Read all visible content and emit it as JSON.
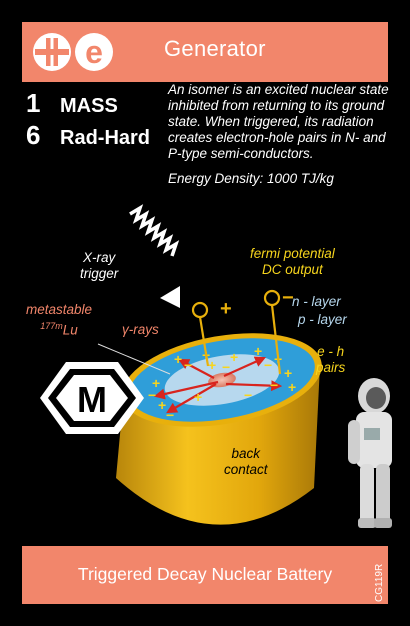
{
  "card": {
    "title": "Generator",
    "logo_text": "e",
    "stats": [
      {
        "value": "1",
        "label": "MASS"
      },
      {
        "value": "6",
        "label": "Rad-Hard"
      }
    ],
    "description": "An isomer is an excited nuclear state inhibited from returning to its ground state. When triggered, its radiation creates electron-hole pairs in N- and P-type semi-conductors.",
    "energy_density": "Energy Density: 1000 TJ/kg",
    "footer_title": "Triggered Decay Nuclear Battery",
    "card_code": "CG119R",
    "type_badge": "M"
  },
  "diagram": {
    "xray_trigger": [
      "X-ray",
      "trigger"
    ],
    "metastable": "metastable",
    "isotope_mass": "177m",
    "isotope_symbol": "Lu",
    "gamma_rays": "γ-rays",
    "fermi_output": [
      "fermi potential",
      "DC output"
    ],
    "n_layer": "n - layer",
    "p_layer": "p - layer",
    "eh_pairs": [
      "e - h",
      "pairs"
    ],
    "back_contact": [
      "back",
      "contact"
    ],
    "plus_sign": "+",
    "minus_sign": "−"
  },
  "colors": {
    "header": "#f2866b",
    "gold": "#e8b00c",
    "blue": "#2f9ed9",
    "pale_blue": "#b7d8ee",
    "yellow_text": "#f7d51d",
    "salmon_text": "#f2866b",
    "red_arrow": "#d8241e"
  },
  "icons": [
    "generator-logo-icon",
    "type-m-hexagon-icon",
    "astronaut-icon",
    "xray-wave-arrow-icon"
  ]
}
